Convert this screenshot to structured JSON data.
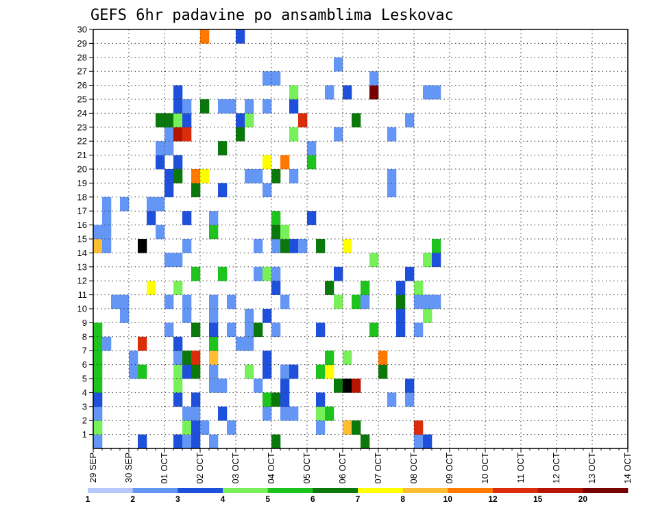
{
  "chart_data": {
    "type": "heatmap",
    "title": "GEFS 6hr padavine po ansamblima Leskovac",
    "xlabel": "",
    "ylabel": "",
    "x_tick_labels": [
      "29 SEP",
      "30 SEP",
      "01 OCT",
      "02 OCT",
      "03 OCT",
      "04 OCT",
      "05 OCT",
      "06 OCT",
      "07 OCT",
      "08 OCT",
      "09 OCT",
      "10 OCT",
      "11 OCT",
      "12 OCT",
      "13 OCT",
      "14 OCT"
    ],
    "y_tick_labels": [
      "1",
      "2",
      "3",
      "4",
      "5",
      "6",
      "7",
      "8",
      "9",
      "10",
      "11",
      "12",
      "13",
      "14",
      "15",
      "16",
      "17",
      "18",
      "19",
      "20",
      "21",
      "22",
      "23",
      "24",
      "25",
      "26",
      "27",
      "28",
      "29",
      "30"
    ],
    "xlim": [
      0,
      60
    ],
    "ylim": [
      0,
      30
    ],
    "grid": true,
    "colorbar": {
      "thresholds": [
        "1",
        "2",
        "3",
        "4",
        "5",
        "6",
        "7",
        "8",
        "10",
        "12",
        "15",
        "20"
      ],
      "colors": [
        "#b4c8fa",
        "#6496f5",
        "#1e50dc",
        "#78f05a",
        "#1ec31e",
        "#0a780a",
        "#ffff00",
        "#ffbe32",
        "#ff7800",
        "#dc2d0a",
        "#b41400",
        "#780000"
      ]
    },
    "cells": [
      [
        0,
        0,
        1
      ],
      [
        0,
        1,
        3
      ],
      [
        0,
        2,
        1
      ],
      [
        0,
        3,
        2
      ],
      [
        0,
        4,
        4
      ],
      [
        0,
        5,
        4
      ],
      [
        0,
        6,
        4
      ],
      [
        0,
        7,
        4
      ],
      [
        0,
        8,
        4
      ],
      [
        0,
        14,
        7
      ],
      [
        0,
        15,
        1
      ],
      [
        1,
        7,
        1
      ],
      [
        1,
        14,
        1
      ],
      [
        1,
        15,
        1
      ],
      [
        1,
        16,
        1
      ],
      [
        1,
        17,
        1
      ],
      [
        2,
        10,
        1
      ],
      [
        3,
        9,
        1
      ],
      [
        3,
        10,
        1
      ],
      [
        3,
        17,
        1
      ],
      [
        4,
        5,
        1
      ],
      [
        4,
        6,
        1
      ],
      [
        5,
        0,
        2
      ],
      [
        5,
        5,
        4
      ],
      [
        5,
        7,
        9
      ],
      [
        5,
        14,
        12
      ],
      [
        6,
        11,
        6
      ],
      [
        6,
        16,
        2
      ],
      [
        6,
        17,
        1
      ],
      [
        7,
        15,
        1
      ],
      [
        7,
        17,
        1
      ],
      [
        7,
        20,
        2
      ],
      [
        7,
        21,
        1
      ],
      [
        7,
        23,
        5
      ],
      [
        8,
        8,
        1
      ],
      [
        8,
        10,
        1
      ],
      [
        8,
        13,
        1
      ],
      [
        8,
        18,
        2
      ],
      [
        8,
        19,
        2
      ],
      [
        8,
        21,
        1
      ],
      [
        8,
        22,
        1
      ],
      [
        8,
        23,
        5
      ],
      [
        9,
        0,
        2
      ],
      [
        9,
        3,
        2
      ],
      [
        9,
        4,
        3
      ],
      [
        9,
        5,
        3
      ],
      [
        9,
        6,
        1
      ],
      [
        9,
        7,
        2
      ],
      [
        9,
        11,
        3
      ],
      [
        9,
        13,
        1
      ],
      [
        9,
        19,
        5
      ],
      [
        9,
        20,
        2
      ],
      [
        9,
        22,
        10
      ],
      [
        9,
        23,
        3
      ],
      [
        9,
        24,
        2
      ],
      [
        9,
        25,
        2
      ],
      [
        10,
        0,
        1
      ],
      [
        10,
        1,
        3
      ],
      [
        10,
        2,
        1
      ],
      [
        10,
        5,
        2
      ],
      [
        10,
        6,
        5
      ],
      [
        10,
        9,
        1
      ],
      [
        10,
        10,
        1
      ],
      [
        10,
        14,
        1
      ],
      [
        10,
        16,
        2
      ],
      [
        10,
        22,
        9
      ],
      [
        10,
        23,
        2
      ],
      [
        10,
        24,
        1
      ],
      [
        11,
        0,
        2
      ],
      [
        11,
        1,
        2
      ],
      [
        11,
        2,
        1
      ],
      [
        11,
        3,
        2
      ],
      [
        11,
        5,
        5
      ],
      [
        11,
        6,
        9
      ],
      [
        11,
        8,
        5
      ],
      [
        11,
        12,
        4
      ],
      [
        11,
        18,
        5
      ],
      [
        11,
        19,
        8
      ],
      [
        12,
        1,
        1
      ],
      [
        12,
        19,
        6
      ],
      [
        12,
        24,
        5
      ],
      [
        12,
        29,
        8
      ],
      [
        13,
        0,
        1
      ],
      [
        13,
        4,
        1
      ],
      [
        13,
        5,
        1
      ],
      [
        13,
        6,
        7
      ],
      [
        13,
        7,
        4
      ],
      [
        13,
        8,
        2
      ],
      [
        13,
        9,
        1
      ],
      [
        13,
        10,
        1
      ],
      [
        13,
        15,
        4
      ],
      [
        13,
        16,
        1
      ],
      [
        14,
        2,
        2
      ],
      [
        14,
        4,
        1
      ],
      [
        14,
        12,
        4
      ],
      [
        14,
        18,
        2
      ],
      [
        14,
        21,
        5
      ],
      [
        14,
        24,
        1
      ],
      [
        15,
        1,
        1
      ],
      [
        15,
        8,
        1
      ],
      [
        15,
        10,
        1
      ],
      [
        15,
        24,
        1
      ],
      [
        16,
        7,
        1
      ],
      [
        16,
        22,
        5
      ],
      [
        16,
        23,
        2
      ],
      [
        16,
        29,
        2
      ],
      [
        17,
        5,
        3
      ],
      [
        17,
        7,
        1
      ],
      [
        17,
        8,
        1
      ],
      [
        17,
        9,
        1
      ],
      [
        17,
        19,
        1
      ],
      [
        17,
        23,
        3
      ],
      [
        17,
        24,
        1
      ],
      [
        18,
        4,
        1
      ],
      [
        18,
        8,
        5
      ],
      [
        18,
        12,
        1
      ],
      [
        18,
        14,
        1
      ],
      [
        18,
        19,
        1
      ],
      [
        19,
        2,
        1
      ],
      [
        19,
        3,
        4
      ],
      [
        19,
        5,
        2
      ],
      [
        19,
        6,
        2
      ],
      [
        19,
        9,
        2
      ],
      [
        19,
        12,
        3
      ],
      [
        19,
        18,
        1
      ],
      [
        19,
        20,
        6
      ],
      [
        19,
        24,
        1
      ],
      [
        19,
        26,
        1
      ],
      [
        20,
        0,
        5
      ],
      [
        20,
        3,
        5
      ],
      [
        20,
        8,
        1
      ],
      [
        20,
        11,
        2
      ],
      [
        20,
        12,
        1
      ],
      [
        20,
        14,
        1
      ],
      [
        20,
        15,
        5
      ],
      [
        20,
        16,
        4
      ],
      [
        20,
        19,
        5
      ],
      [
        20,
        26,
        1
      ],
      [
        21,
        2,
        1
      ],
      [
        21,
        3,
        2
      ],
      [
        21,
        4,
        2
      ],
      [
        21,
        5,
        1
      ],
      [
        21,
        10,
        1
      ],
      [
        21,
        14,
        5
      ],
      [
        21,
        15,
        3
      ],
      [
        21,
        20,
        8
      ],
      [
        22,
        2,
        1
      ],
      [
        22,
        5,
        2
      ],
      [
        22,
        14,
        2
      ],
      [
        22,
        19,
        1
      ],
      [
        22,
        22,
        3
      ],
      [
        22,
        24,
        2
      ],
      [
        22,
        25,
        3
      ],
      [
        23,
        14,
        1
      ],
      [
        23,
        23,
        9
      ],
      [
        24,
        16,
        2
      ],
      [
        24,
        20,
        4
      ],
      [
        24,
        21,
        1
      ],
      [
        25,
        1,
        1
      ],
      [
        25,
        2,
        3
      ],
      [
        25,
        3,
        2
      ],
      [
        25,
        5,
        4
      ],
      [
        25,
        8,
        2
      ],
      [
        25,
        14,
        5
      ],
      [
        26,
        2,
        4
      ],
      [
        26,
        5,
        6
      ],
      [
        26,
        6,
        4
      ],
      [
        26,
        11,
        5
      ],
      [
        26,
        25,
        1
      ],
      [
        27,
        4,
        5
      ],
      [
        27,
        10,
        3
      ],
      [
        27,
        12,
        2
      ],
      [
        27,
        22,
        1
      ],
      [
        27,
        27,
        1
      ],
      [
        28,
        1,
        7
      ],
      [
        28,
        4,
        12
      ],
      [
        28,
        6,
        3
      ],
      [
        28,
        14,
        6
      ],
      [
        28,
        25,
        2
      ],
      [
        29,
        1,
        5
      ],
      [
        29,
        4,
        10
      ],
      [
        29,
        10,
        4
      ],
      [
        29,
        23,
        5
      ],
      [
        30,
        0,
        5
      ],
      [
        30,
        10,
        1
      ],
      [
        30,
        11,
        4
      ],
      [
        31,
        8,
        4
      ],
      [
        31,
        13,
        3
      ],
      [
        31,
        25,
        11
      ],
      [
        31,
        26,
        1
      ],
      [
        32,
        5,
        5
      ],
      [
        32,
        6,
        8
      ],
      [
        33,
        3,
        1
      ],
      [
        33,
        18,
        1
      ],
      [
        33,
        19,
        1
      ],
      [
        33,
        22,
        1
      ],
      [
        34,
        8,
        2
      ],
      [
        34,
        9,
        2
      ],
      [
        34,
        10,
        5
      ],
      [
        34,
        11,
        2
      ],
      [
        35,
        3,
        1
      ],
      [
        35,
        4,
        2
      ],
      [
        35,
        12,
        2
      ],
      [
        35,
        23,
        1
      ],
      [
        36,
        0,
        1
      ],
      [
        36,
        1,
        9
      ],
      [
        36,
        8,
        1
      ],
      [
        36,
        10,
        1
      ],
      [
        36,
        11,
        3
      ],
      [
        37,
        0,
        2
      ],
      [
        37,
        9,
        3
      ],
      [
        37,
        10,
        1
      ],
      [
        37,
        13,
        3
      ],
      [
        37,
        25,
        1
      ],
      [
        38,
        10,
        1
      ],
      [
        38,
        13,
        2
      ],
      [
        38,
        14,
        4
      ],
      [
        38,
        25,
        1
      ]
    ]
  }
}
